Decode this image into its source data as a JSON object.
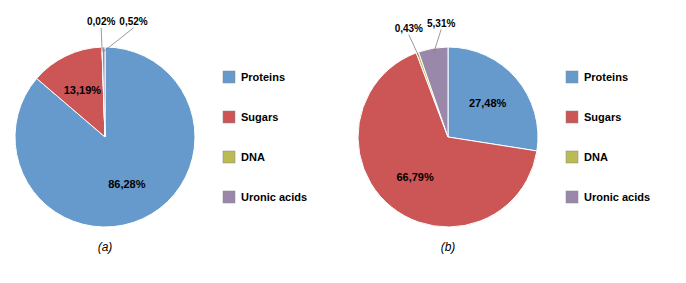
{
  "chart_data": [
    {
      "type": "pie",
      "title": "(a)",
      "categories": [
        "Proteins",
        "Sugars",
        "DNA",
        "Uronic acids"
      ],
      "values": [
        86.28,
        13.19,
        0.02,
        0.52
      ],
      "value_labels": [
        "86,28%",
        "13,19%",
        "0,02%",
        "0,52%"
      ],
      "colors": [
        "#6699CC",
        "#CC5555",
        "#BBBB55",
        "#9988AA"
      ],
      "data_labels": true,
      "legend": "right"
    },
    {
      "type": "pie",
      "title": "(b)",
      "categories": [
        "Proteins",
        "Sugars",
        "DNA",
        "Uronic acids"
      ],
      "values": [
        27.48,
        66.79,
        0.43,
        5.31
      ],
      "value_labels": [
        "27,48%",
        "66,79%",
        "0,43%",
        "5,31%"
      ],
      "colors": [
        "#6699CC",
        "#CC5555",
        "#BBBB55",
        "#9988AA"
      ],
      "data_labels": true,
      "legend": "right"
    }
  ]
}
